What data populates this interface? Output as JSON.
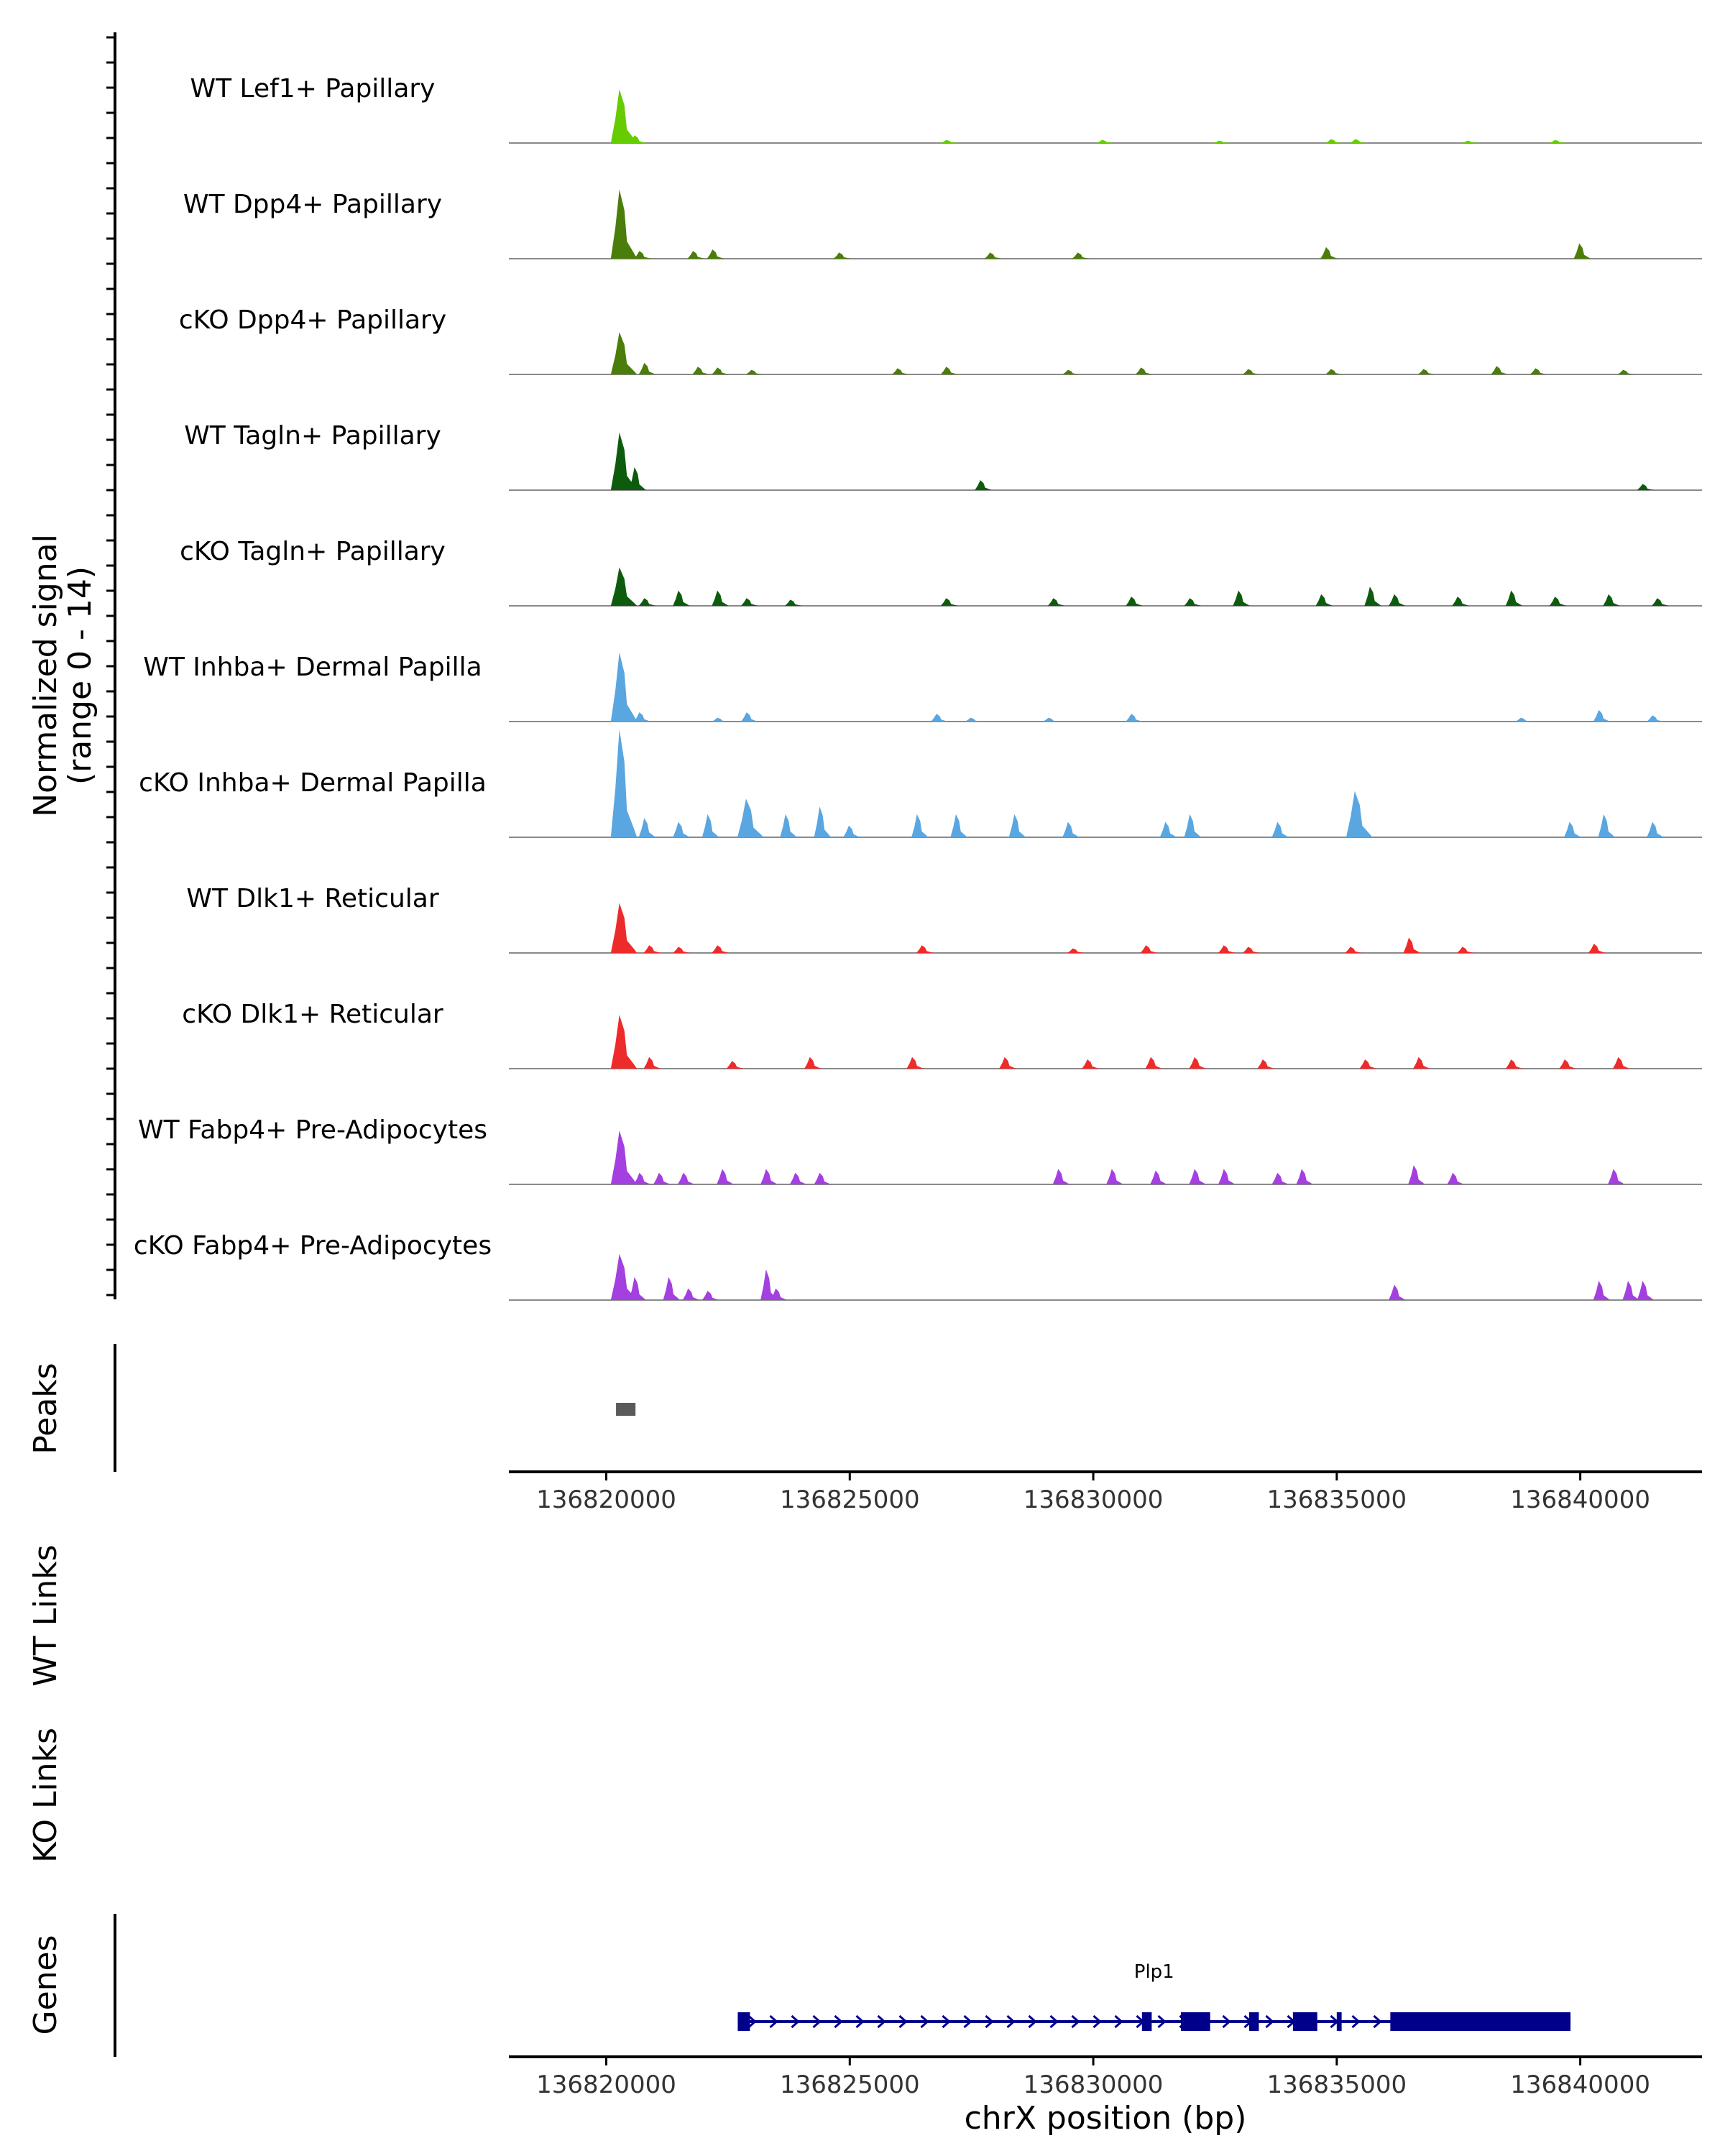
{
  "chart_data": {
    "type": "area",
    "title": "",
    "region": {
      "chrom": "chrX",
      "start": 136818000,
      "end": 136842500
    },
    "xlabel": "chrX position (bp)",
    "xticks": [
      136820000,
      136825000,
      136830000,
      136835000,
      136840000
    ],
    "xtick_labels": [
      "136820000",
      "136825000",
      "136830000",
      "136835000",
      "136840000"
    ],
    "coverage_ylabel": "Normalized signal",
    "coverage_ylabel_range": "(range 0 - 14)",
    "ylim": [
      0,
      14
    ],
    "tracks": [
      {
        "name": "WT Lef1+ Papillary",
        "color": "#66cc00",
        "peaks": [
          [
            136820300,
            7
          ],
          [
            136820600,
            1
          ],
          [
            136827000,
            0.4
          ],
          [
            136830200,
            0.4
          ],
          [
            136832600,
            0.3
          ],
          [
            136834900,
            0.5
          ],
          [
            136835400,
            0.5
          ],
          [
            136837700,
            0.3
          ],
          [
            136839500,
            0.4
          ]
        ]
      },
      {
        "name": "WT Dpp4+ Papillary",
        "color": "#4a7d0a",
        "peaks": [
          [
            136820300,
            9
          ],
          [
            136820700,
            1
          ],
          [
            136821800,
            1
          ],
          [
            136822200,
            1.2
          ],
          [
            136824800,
            0.8
          ],
          [
            136827900,
            0.8
          ],
          [
            136829700,
            0.8
          ],
          [
            136834800,
            1.5
          ],
          [
            136840000,
            2
          ]
        ]
      },
      {
        "name": "cKO Dpp4+ Papillary",
        "color": "#4a7d0a",
        "peaks": [
          [
            136820300,
            5.5
          ],
          [
            136820800,
            1.5
          ],
          [
            136821900,
            1
          ],
          [
            136822300,
            0.9
          ],
          [
            136823000,
            0.6
          ],
          [
            136826000,
            0.8
          ],
          [
            136827000,
            1
          ],
          [
            136829500,
            0.6
          ],
          [
            136831000,
            0.9
          ],
          [
            136833200,
            0.7
          ],
          [
            136834900,
            0.7
          ],
          [
            136836800,
            0.7
          ],
          [
            136838300,
            1.1
          ],
          [
            136839100,
            0.8
          ],
          [
            136840900,
            0.6
          ]
        ]
      },
      {
        "name": "WT Tagln+ Papillary",
        "color": "#0d5c0d",
        "peaks": [
          [
            136820300,
            7.5
          ],
          [
            136820600,
            3
          ],
          [
            136827700,
            1.3
          ],
          [
            136841300,
            0.8
          ]
        ]
      },
      {
        "name": "cKO Tagln+ Papillary",
        "color": "#0d5c0d",
        "peaks": [
          [
            136820300,
            5
          ],
          [
            136820800,
            1
          ],
          [
            136821500,
            2
          ],
          [
            136822300,
            2
          ],
          [
            136822900,
            1
          ],
          [
            136823800,
            0.8
          ],
          [
            136827000,
            1
          ],
          [
            136829200,
            1
          ],
          [
            136830800,
            1.2
          ],
          [
            136832000,
            1
          ],
          [
            136833000,
            2
          ],
          [
            136834700,
            1.5
          ],
          [
            136835700,
            2.5
          ],
          [
            136836200,
            1.5
          ],
          [
            136837500,
            1.2
          ],
          [
            136838600,
            2
          ],
          [
            136839500,
            1.2
          ],
          [
            136840600,
            1.5
          ],
          [
            136841600,
            1
          ]
        ]
      },
      {
        "name": "WT Inhba+ Dermal Papilla",
        "color": "#5aa6e0",
        "peaks": [
          [
            136820300,
            9
          ],
          [
            136820700,
            1.2
          ],
          [
            136822300,
            0.5
          ],
          [
            136822900,
            1.2
          ],
          [
            136826800,
            1
          ],
          [
            136827500,
            0.5
          ],
          [
            136829100,
            0.5
          ],
          [
            136830800,
            1
          ],
          [
            136838800,
            0.5
          ],
          [
            136840400,
            1.5
          ],
          [
            136841500,
            0.8
          ]
        ]
      },
      {
        "name": "cKO Inhba+ Dermal Papilla",
        "color": "#5aa6e0",
        "peaks": [
          [
            136820300,
            14
          ],
          [
            136820800,
            2.5
          ],
          [
            136821500,
            2
          ],
          [
            136822100,
            3
          ],
          [
            136822900,
            5
          ],
          [
            136823700,
            3
          ],
          [
            136824400,
            4
          ],
          [
            136825000,
            1.5
          ],
          [
            136826400,
            3
          ],
          [
            136827200,
            3
          ],
          [
            136828400,
            3
          ],
          [
            136829500,
            2
          ],
          [
            136831500,
            2
          ],
          [
            136832000,
            3
          ],
          [
            136833800,
            2
          ],
          [
            136835400,
            6
          ],
          [
            136839800,
            2
          ],
          [
            136840500,
            3
          ],
          [
            136841500,
            2
          ]
        ]
      },
      {
        "name": "WT Dlk1+ Reticular",
        "color": "#ee2b2b",
        "peaks": [
          [
            136820300,
            6.5
          ],
          [
            136820900,
            1
          ],
          [
            136821500,
            0.8
          ],
          [
            136822300,
            1
          ],
          [
            136826500,
            1
          ],
          [
            136829600,
            0.6
          ],
          [
            136831100,
            1
          ],
          [
            136832700,
            1
          ],
          [
            136833200,
            0.8
          ],
          [
            136835300,
            0.8
          ],
          [
            136836500,
            2
          ],
          [
            136837600,
            0.8
          ],
          [
            136840300,
            1.2
          ]
        ]
      },
      {
        "name": "cKO Dlk1+ Reticular",
        "color": "#ee2b2b",
        "peaks": [
          [
            136820300,
            7
          ],
          [
            136820900,
            1.5
          ],
          [
            136822600,
            1
          ],
          [
            136824200,
            1.5
          ],
          [
            136826300,
            1.5
          ],
          [
            136828200,
            1.5
          ],
          [
            136829900,
            1.2
          ],
          [
            136831200,
            1.5
          ],
          [
            136832100,
            1.5
          ],
          [
            136833500,
            1.2
          ],
          [
            136835600,
            1.2
          ],
          [
            136836700,
            1.5
          ],
          [
            136838600,
            1.2
          ],
          [
            136839700,
            1.2
          ],
          [
            136840800,
            1.5
          ]
        ]
      },
      {
        "name": "WT Fabp4+ Pre-Adipocytes",
        "color": "#a43fe0",
        "peaks": [
          [
            136820300,
            7
          ],
          [
            136820700,
            1.5
          ],
          [
            136821100,
            1.5
          ],
          [
            136821600,
            1.5
          ],
          [
            136822400,
            2
          ],
          [
            136823300,
            2
          ],
          [
            136823900,
            1.5
          ],
          [
            136824400,
            1.5
          ],
          [
            136829300,
            2
          ],
          [
            136830400,
            2
          ],
          [
            136831300,
            1.8
          ],
          [
            136832100,
            2
          ],
          [
            136832700,
            2
          ],
          [
            136833800,
            1.5
          ],
          [
            136834300,
            2
          ],
          [
            136836600,
            2.5
          ],
          [
            136837400,
            1.5
          ],
          [
            136840700,
            2
          ]
        ]
      },
      {
        "name": "cKO Fabp4+ Pre-Adipocytes",
        "color": "#a43fe0",
        "peaks": [
          [
            136820300,
            6
          ],
          [
            136820600,
            3
          ],
          [
            136821300,
            3
          ],
          [
            136821700,
            1.5
          ],
          [
            136822100,
            1.2
          ],
          [
            136823300,
            4
          ],
          [
            136823500,
            1.5
          ],
          [
            136836200,
            2
          ],
          [
            136840400,
            2.5
          ],
          [
            136841000,
            2.5
          ],
          [
            136841300,
            2.5
          ]
        ]
      }
    ],
    "peaks_track": {
      "label": "Peaks",
      "color": "#5a5a5a",
      "ranges": [
        [
          136820200,
          136820600
        ]
      ]
    },
    "link_tracks": [
      "WT Links",
      "KO Links"
    ],
    "genes_track": {
      "label": "Genes",
      "color": "#00008b",
      "gene": "Plp1",
      "strand": "+",
      "start": 136822700,
      "end": 136839800,
      "exons": [
        [
          136822700,
          136822950
        ],
        [
          136831000,
          136831200
        ],
        [
          136831800,
          136832400
        ],
        [
          136833200,
          136833400
        ],
        [
          136834100,
          136834600
        ],
        [
          136835000,
          136835100
        ],
        [
          136836100,
          136839800
        ]
      ]
    }
  }
}
